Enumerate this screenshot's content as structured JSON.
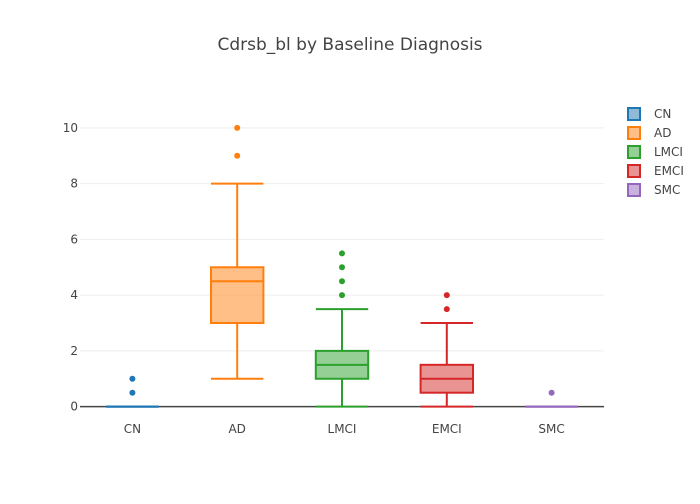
{
  "chart_data": {
    "type": "box",
    "title": "Cdrsb_bl by Baseline Diagnosis",
    "xlabel": "",
    "ylabel": "",
    "categories": [
      "CN",
      "AD",
      "LMCI",
      "EMCI",
      "SMC"
    ],
    "ylim": [
      -0.3,
      11
    ],
    "yticks": [
      0,
      2,
      4,
      6,
      8,
      10
    ],
    "grid": true,
    "legend_position": "top-right",
    "series": [
      {
        "name": "CN",
        "color": "#1f77b4",
        "min": 0,
        "q1": 0,
        "median": 0,
        "q3": 0,
        "max": 0,
        "outliers": [
          0.5,
          1
        ]
      },
      {
        "name": "AD",
        "color": "#ff7f0e",
        "min": 1,
        "q1": 3,
        "median": 4.5,
        "q3": 5,
        "max": 8,
        "outliers": [
          9,
          10
        ]
      },
      {
        "name": "LMCI",
        "color": "#2ca02c",
        "min": 0,
        "q1": 1,
        "median": 1.5,
        "q3": 2,
        "max": 3.5,
        "outliers": [
          4,
          4.5,
          5,
          5.5
        ]
      },
      {
        "name": "EMCI",
        "color": "#d62728",
        "min": 0,
        "q1": 0.5,
        "median": 1,
        "q3": 1.5,
        "max": 3,
        "outliers": [
          3.5,
          4
        ]
      },
      {
        "name": "SMC",
        "color": "#9467bd",
        "min": 0,
        "q1": 0,
        "median": 0,
        "q3": 0,
        "max": 0,
        "outliers": [
          0.5
        ]
      }
    ]
  }
}
